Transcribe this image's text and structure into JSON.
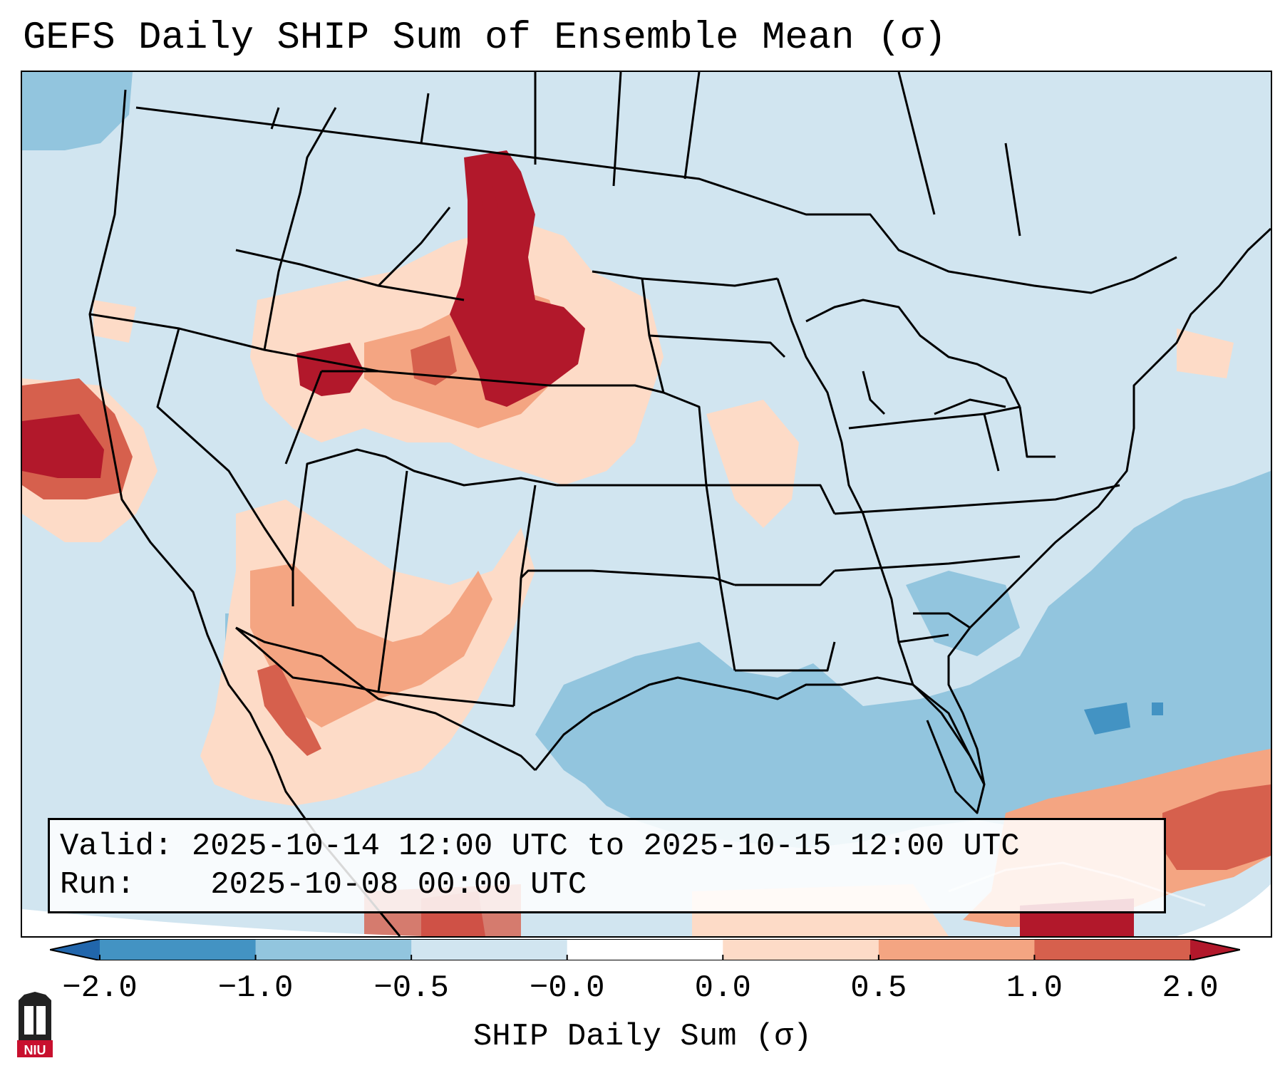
{
  "title": "GEFS Daily SHIP Sum of Ensemble Mean (σ)",
  "valid_box": {
    "valid_label": "Valid:",
    "valid_value": "2025-10-14 12:00 UTC to 2025-10-15 12:00 UTC",
    "run_label": "Run:",
    "run_value": "2025-10-08 00:00 UTC"
  },
  "colorbar": {
    "label": "SHIP Daily Sum (σ)",
    "ticks": [
      "−2.0",
      "−1.0",
      "−0.5",
      "−0.0",
      "0.0",
      "0.5",
      "1.0",
      "2.0"
    ],
    "colors": [
      "#2166ac",
      "#4393c3",
      "#92c5de",
      "#d1e5f0",
      "#ffffff",
      "#fddbc7",
      "#f4a582",
      "#d6604d",
      "#b2182b"
    ]
  },
  "logo": {
    "text": "NIU",
    "colors": {
      "top": "#222222",
      "bottom": "#c8102e"
    }
  },
  "map_colors": {
    "background": "#d1e5f0",
    "ocean_neg": "#92c5de",
    "strong_neg": "#4393c3",
    "weak_pos": "#fddbc7",
    "mid_pos": "#f4a582",
    "high_pos": "#d6604d",
    "max_pos": "#b2182b",
    "borders": "#000000"
  }
}
